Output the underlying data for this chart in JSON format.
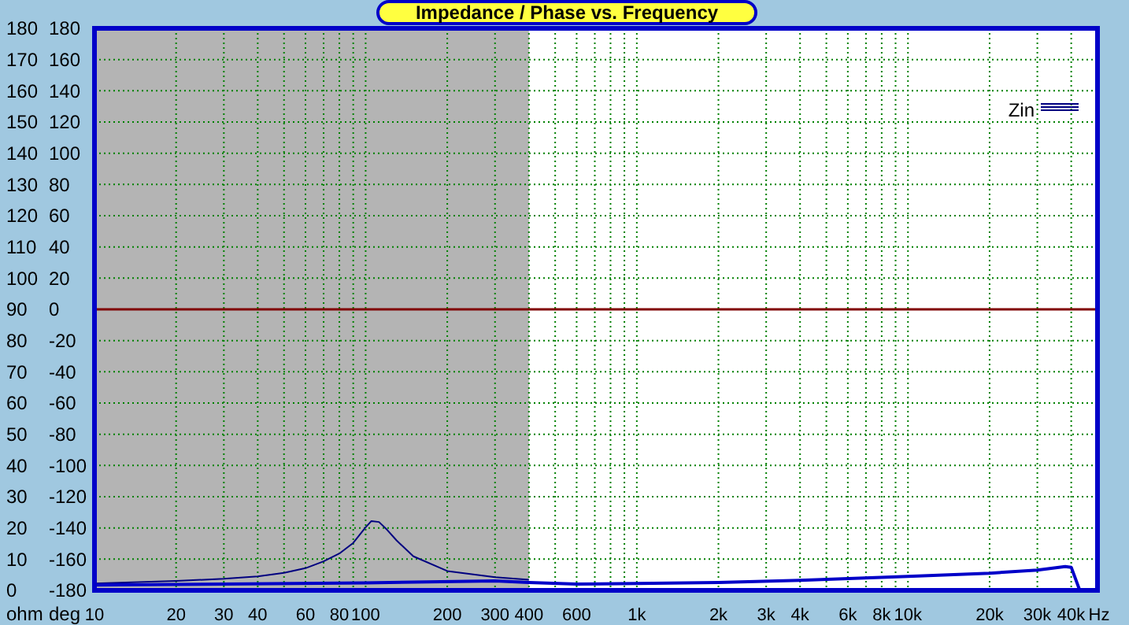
{
  "chart_data": {
    "type": "line",
    "title": "Impedance / Phase vs. Frequency",
    "ylabel": "ohm",
    "y2label": "deg",
    "log": "x",
    "grid": true,
    "legend": "top right",
    "xlim": [
      10,
      50000
    ],
    "xticks": [
      10,
      20,
      30,
      40,
      {
        "value": 50,
        "label": null
      },
      60,
      {
        "value": 70,
        "label": null
      },
      80,
      {
        "value": 90,
        "label": null
      },
      100,
      200,
      300,
      400,
      {
        "value": 500,
        "label": null
      },
      600,
      {
        "value": 700,
        "label": null
      },
      {
        "value": 800,
        "label": null
      },
      {
        "value": 900,
        "label": null
      },
      {
        "value": 1000,
        "label": "1k"
      },
      {
        "value": 2000,
        "label": "2k"
      },
      {
        "value": 3000,
        "label": "3k"
      },
      {
        "value": 4000,
        "label": "4k"
      },
      {
        "value": 5000,
        "label": null
      },
      {
        "value": 6000,
        "label": "6k"
      },
      {
        "value": 7000,
        "label": null
      },
      {
        "value": 8000,
        "label": "8k"
      },
      {
        "value": 9000,
        "label": null
      },
      {
        "value": 10000,
        "label": "10k"
      },
      {
        "value": 20000,
        "label": "20k"
      },
      {
        "value": 30000,
        "label": "30k"
      },
      {
        "value": 40000,
        "label": "40k"
      }
    ],
    "xlabel": "Hz",
    "ylim": [
      0,
      180
    ],
    "yticks": [
      0,
      10,
      20,
      30,
      40,
      50,
      60,
      70,
      80,
      90,
      100,
      110,
      120,
      130,
      140,
      150,
      160,
      170,
      180
    ],
    "y2lim": [
      -180,
      180
    ],
    "y2ticks": [
      -180,
      -160,
      -140,
      -120,
      -100,
      -80,
      -60,
      -40,
      -20,
      0,
      20,
      40,
      60,
      80,
      100,
      120,
      140,
      160,
      180
    ],
    "bands": [
      {
        "axis": "x",
        "from": 10,
        "to": 400,
        "color": "#b4b4b4"
      }
    ],
    "ref_lines": [
      {
        "axis": "y2",
        "value": 0,
        "color": "#800000"
      }
    ],
    "series": [
      {
        "name": "Zin",
        "color": "#000080",
        "x": [
          10,
          20,
          30,
          40,
          50,
          60,
          70,
          80,
          90,
          100,
          105,
          112,
          120,
          130,
          150,
          200,
          300,
          400
        ],
        "values": [
          2.2,
          3.0,
          3.7,
          4.5,
          5.6,
          7.1,
          9.3,
          11.8,
          15.2,
          20.2,
          22.2,
          21.9,
          19.4,
          16,
          10.9,
          6.2,
          4.2,
          3.4
        ]
      },
      {
        "color": "#0000c8",
        "x": [
          10,
          100,
          300,
          400,
          600,
          1000,
          2000,
          4000,
          10000,
          20000,
          30000,
          38000,
          40000,
          43000
        ],
        "values": [
          1.7,
          2.4,
          3.0,
          2.5,
          2.0,
          2.2,
          2.5,
          3.2,
          4.5,
          5.5,
          6.5,
          7.6,
          7.4,
          0
        ]
      }
    ]
  }
}
